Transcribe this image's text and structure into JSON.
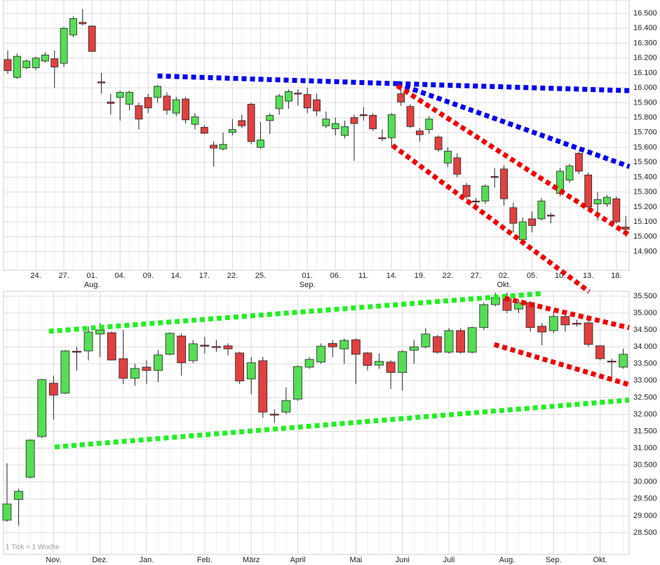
{
  "note": "1 Tick = 1 Woche",
  "chart_data": [
    {
      "type": "candlestick",
      "categories": [
        null,
        null,
        null,
        "24.",
        null,
        null,
        "27.",
        null,
        null,
        "01.",
        null,
        null,
        "04.",
        null,
        null,
        "09.",
        null,
        null,
        "14.",
        null,
        null,
        "17.",
        null,
        null,
        "22.",
        null,
        null,
        "25.",
        null,
        null,
        null,
        null,
        "01.",
        null,
        null,
        "06.",
        null,
        null,
        "11.",
        null,
        null,
        "14.",
        null,
        null,
        "19.",
        null,
        null,
        "22.",
        null,
        null,
        "27.",
        null,
        null,
        "02.",
        null,
        null,
        "05.",
        null,
        null,
        "10.",
        null,
        null,
        "13.",
        null,
        null,
        "18.",
        null
      ],
      "months": [
        {
          "at": 9,
          "label": "Aug."
        },
        {
          "at": 32,
          "label": "Sep."
        },
        {
          "at": 53,
          "label": "Okt."
        }
      ],
      "open": [
        16190,
        16070,
        16135,
        16135,
        16180,
        16195,
        16165,
        16355,
        16440,
        16415,
        16040,
        15905,
        15935,
        15890,
        15880,
        15935,
        15935,
        15945,
        15830,
        15925,
        15755,
        15735,
        15615,
        15590,
        15700,
        15780,
        15890,
        15600,
        15780,
        15860,
        15910,
        15965,
        15955,
        15920,
        15745,
        15725,
        15680,
        15800,
        15820,
        15815,
        15665,
        15665,
        15960,
        15875,
        15710,
        15720,
        15670,
        15495,
        15530,
        15345,
        15240,
        15240,
        15405,
        15455,
        15195,
        14980,
        15120,
        15120,
        15145,
        15290,
        15380,
        15560,
        15415,
        15220,
        15220,
        15255,
        15065
      ],
      "high": [
        16250,
        16230,
        16190,
        16210,
        16240,
        16250,
        16410,
        16480,
        16530,
        16420,
        16100,
        15960,
        15980,
        15980,
        15900,
        15960,
        16020,
        15970,
        15940,
        15940,
        15830,
        15750,
        15640,
        15700,
        15790,
        15820,
        15900,
        15770,
        15830,
        15960,
        15990,
        15990,
        16000,
        15960,
        15840,
        15800,
        15780,
        15820,
        15870,
        15830,
        15720,
        15830,
        16020,
        15890,
        15730,
        15810,
        15680,
        15600,
        15560,
        15360,
        15260,
        15350,
        15460,
        15480,
        15230,
        15130,
        15170,
        15260,
        15160,
        15460,
        15490,
        15570,
        15430,
        15300,
        15280,
        15270,
        15140
      ],
      "low": [
        16095,
        16060,
        16125,
        16120,
        16170,
        16000,
        16140,
        16340,
        16420,
        16240,
        15960,
        15820,
        15780,
        15850,
        15720,
        15830,
        15900,
        15820,
        15810,
        15760,
        15720,
        15690,
        15470,
        15580,
        15680,
        15730,
        15620,
        15590,
        15690,
        15820,
        15860,
        15880,
        15830,
        15810,
        15730,
        15680,
        15660,
        15510,
        15780,
        15710,
        15640,
        15600,
        15880,
        15730,
        15640,
        15690,
        15570,
        15470,
        15400,
        15250,
        15190,
        15220,
        15330,
        15210,
        15030,
        14960,
        15030,
        15110,
        15090,
        15270,
        15360,
        15420,
        15180,
        15110,
        15200,
        15090,
        15000
      ],
      "close": [
        16115,
        16212,
        16180,
        16200,
        16220,
        16140,
        16400,
        16465,
        16430,
        16245,
        16035,
        15895,
        15970,
        15970,
        15790,
        15865,
        16010,
        15850,
        15920,
        15785,
        15805,
        15695,
        15595,
        15620,
        15720,
        15745,
        15640,
        15650,
        15815,
        15945,
        15975,
        15960,
        15865,
        15845,
        15790,
        15760,
        15740,
        15760,
        15815,
        15725,
        15660,
        15820,
        15905,
        15740,
        15685,
        15790,
        15585,
        15575,
        15420,
        15270,
        15235,
        15340,
        15400,
        15255,
        15090,
        15100,
        15075,
        15240,
        15140,
        15440,
        15475,
        15440,
        15200,
        15250,
        15265,
        15100,
        15050
      ],
      "up_color": "#55dd55",
      "down_color": "#e04040",
      "ylim": [
        14775,
        16590
      ],
      "yticks": [
        {
          "value": 14900,
          "label": "14.900"
        },
        {
          "value": 15000,
          "label": "15.000"
        },
        {
          "value": 15100,
          "label": "15.100"
        },
        {
          "value": 15200,
          "label": "15.200"
        },
        {
          "value": 15300,
          "label": "15.300"
        },
        {
          "value": 15400,
          "label": "15.400"
        },
        {
          "value": 15500,
          "label": "15.500"
        },
        {
          "value": 15600,
          "label": "15.600"
        },
        {
          "value": 15700,
          "label": "15.700"
        },
        {
          "value": 15800,
          "label": "15.800"
        },
        {
          "value": 15900,
          "label": "15.900"
        },
        {
          "value": 16000,
          "label": "16.000"
        },
        {
          "value": 16100,
          "label": "16.100"
        },
        {
          "value": 16200,
          "label": "16.200"
        },
        {
          "value": 16300,
          "label": "16.300"
        },
        {
          "value": 16400,
          "label": "16.400"
        },
        {
          "value": 16500,
          "label": "16.500"
        }
      ],
      "grid": true,
      "trend_lines": [
        {
          "color": "#0000ee",
          "points": [
            [
              16.0,
              16080
            ],
            [
              41.6,
              16028
            ]
          ]
        },
        {
          "color": "#0000ee",
          "points": [
            [
              41.6,
              16028
            ],
            [
              66.4,
              15981
            ]
          ]
        },
        {
          "color": "#0000ee",
          "points": [
            [
              41.6,
              16028
            ],
            [
              66.4,
              15471
            ]
          ]
        },
        {
          "color": "#ee0000",
          "points": [
            [
              41.6,
              16014
            ],
            [
              66.4,
              15010
            ]
          ]
        },
        {
          "color": "#ee0000",
          "points": [
            [
              41.1,
              15613
            ],
            [
              62.1,
              14631
            ]
          ]
        }
      ]
    },
    {
      "type": "candlestick",
      "categories": [
        null,
        null,
        null,
        null,
        "Nov.",
        null,
        null,
        null,
        "Dez.",
        null,
        null,
        null,
        "Jan.",
        null,
        null,
        null,
        null,
        "Feb.",
        null,
        null,
        null,
        "März",
        null,
        null,
        null,
        "April",
        null,
        null,
        null,
        null,
        "Mai",
        null,
        null,
        null,
        "Juni",
        null,
        null,
        null,
        "Juli",
        null,
        null,
        null,
        null,
        "Aug.",
        null,
        null,
        null,
        "Sep.",
        null,
        null,
        null,
        "Okt.",
        null,
        null
      ],
      "open": [
        28870,
        29480,
        30140,
        31345,
        32925,
        32630,
        33870,
        33880,
        34380,
        34420,
        33650,
        33070,
        33400,
        33300,
        33780,
        34320,
        33590,
        34050,
        34010,
        34030,
        33820,
        33050,
        33590,
        32010,
        32070,
        32450,
        33400,
        33550,
        34100,
        33940,
        34210,
        33820,
        33460,
        33550,
        33240,
        33900,
        34000,
        34300,
        33840,
        34480,
        33840,
        34570,
        35250,
        35420,
        35120,
        35310,
        34610,
        34480,
        34900,
        34700,
        34710,
        34030,
        33580,
        33400
      ],
      "high": [
        30555,
        29800,
        31260,
        33050,
        33150,
        33900,
        34000,
        34600,
        34700,
        34450,
        34500,
        33500,
        33600,
        33900,
        34430,
        34400,
        34200,
        34300,
        34200,
        34100,
        33850,
        33700,
        33700,
        32150,
        32800,
        33450,
        33700,
        34100,
        34200,
        34250,
        34250,
        33850,
        33800,
        33600,
        33900,
        34200,
        34550,
        34350,
        34550,
        34550,
        34600,
        35300,
        35600,
        35600,
        35400,
        35350,
        34700,
        35050,
        35000,
        34800,
        34800,
        34050,
        33650,
        33950
      ],
      "low": [
        28820,
        28710,
        30100,
        31300,
        31850,
        32600,
        33300,
        33600,
        33700,
        33600,
        32900,
        32850,
        32900,
        32950,
        33750,
        33150,
        33520,
        33800,
        33850,
        33750,
        32900,
        32600,
        31900,
        31750,
        32000,
        32400,
        33350,
        33500,
        33700,
        33500,
        32900,
        33300,
        33350,
        32750,
        32700,
        33500,
        33950,
        33800,
        33800,
        33800,
        33800,
        34500,
        35200,
        35000,
        35000,
        34450,
        34050,
        34400,
        34450,
        34600,
        34000,
        33600,
        33000,
        33350
      ],
      "close": [
        29350,
        29725,
        31240,
        33030,
        32570,
        33880,
        33860,
        34440,
        34500,
        33610,
        33070,
        33360,
        33300,
        33760,
        34400,
        33530,
        34090,
        34045,
        34005,
        33940,
        32990,
        33530,
        32070,
        32000,
        32410,
        33420,
        33630,
        34020,
        34000,
        34190,
        33780,
        33450,
        33570,
        33240,
        33860,
        34000,
        34380,
        33840,
        34480,
        33840,
        34570,
        35250,
        35460,
        35080,
        35310,
        34570,
        34440,
        34900,
        34650,
        34690,
        34070,
        33650,
        33570,
        33780
      ],
      "up_color": "#55dd55",
      "down_color": "#e04040",
      "ylim": [
        27855,
        35645
      ],
      "yticks": [
        {
          "value": 28500,
          "label": "28.500"
        },
        {
          "value": 29000,
          "label": "29.000"
        },
        {
          "value": 29500,
          "label": "29.500"
        },
        {
          "value": 30000,
          "label": "30.000"
        },
        {
          "value": 30500,
          "label": "30.500"
        },
        {
          "value": 31000,
          "label": "31.000"
        },
        {
          "value": 31500,
          "label": "31.500"
        },
        {
          "value": 32000,
          "label": "32.000"
        },
        {
          "value": 32500,
          "label": "32.500"
        },
        {
          "value": 33000,
          "label": "33.000"
        },
        {
          "value": 33500,
          "label": "33.500"
        },
        {
          "value": 34000,
          "label": "34.000"
        },
        {
          "value": 34500,
          "label": "34.500"
        },
        {
          "value": 35000,
          "label": "35.000"
        },
        {
          "value": 35500,
          "label": "35.500"
        }
      ],
      "grid": true,
      "trend_lines": [
        {
          "color": "#22ee22",
          "points": [
            [
              3.6,
              34460
            ],
            [
              46.1,
              35580
            ]
          ]
        },
        {
          "color": "#22ee22",
          "points": [
            [
              4.1,
              31035
            ],
            [
              53.5,
              32425
            ]
          ]
        },
        {
          "color": "#ee0000",
          "points": [
            [
              42.8,
              35440
            ],
            [
              53.5,
              34565
            ]
          ]
        },
        {
          "color": "#ee0000",
          "points": [
            [
              41.9,
              34070
            ],
            [
              53.5,
              32880
            ]
          ]
        }
      ]
    }
  ]
}
